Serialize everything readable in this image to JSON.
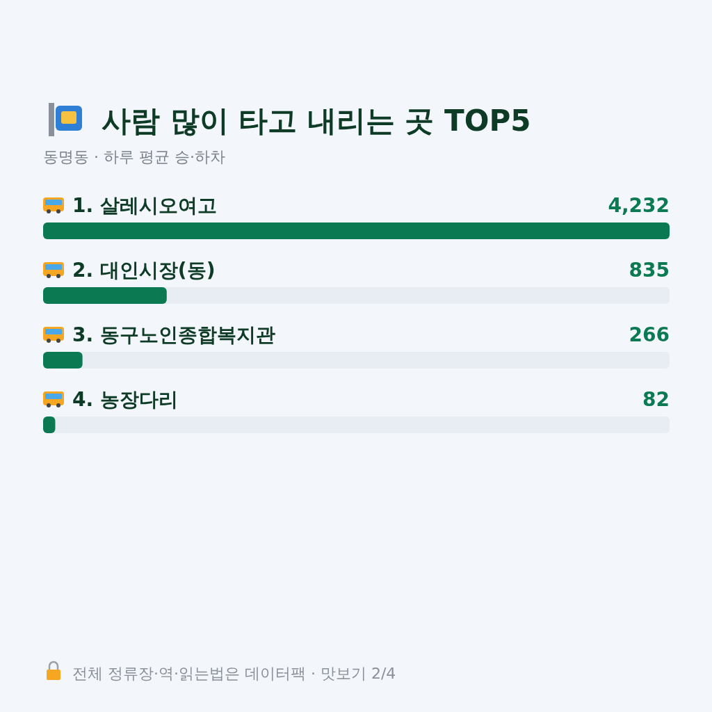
{
  "chart_data": {
    "type": "bar",
    "orientation": "horizontal",
    "title": "사람 많이 타고 내리는 곳 TOP5",
    "subtitle": "동명동 · 하루 평균 승·하차",
    "categories": [
      "1. 살레시오여고",
      "2. 대인시장(동)",
      "3. 동구노인종합복지관",
      "4. 농장다리"
    ],
    "values": [
      4232,
      835,
      266,
      82
    ],
    "color": "#0b7a53",
    "value_labels": [
      "4,232",
      "835",
      "266",
      "82"
    ],
    "annotations": [
      "전체 정류장·역·읽는법은 데이터팩 · 맛보기 2/4"
    ]
  }
}
